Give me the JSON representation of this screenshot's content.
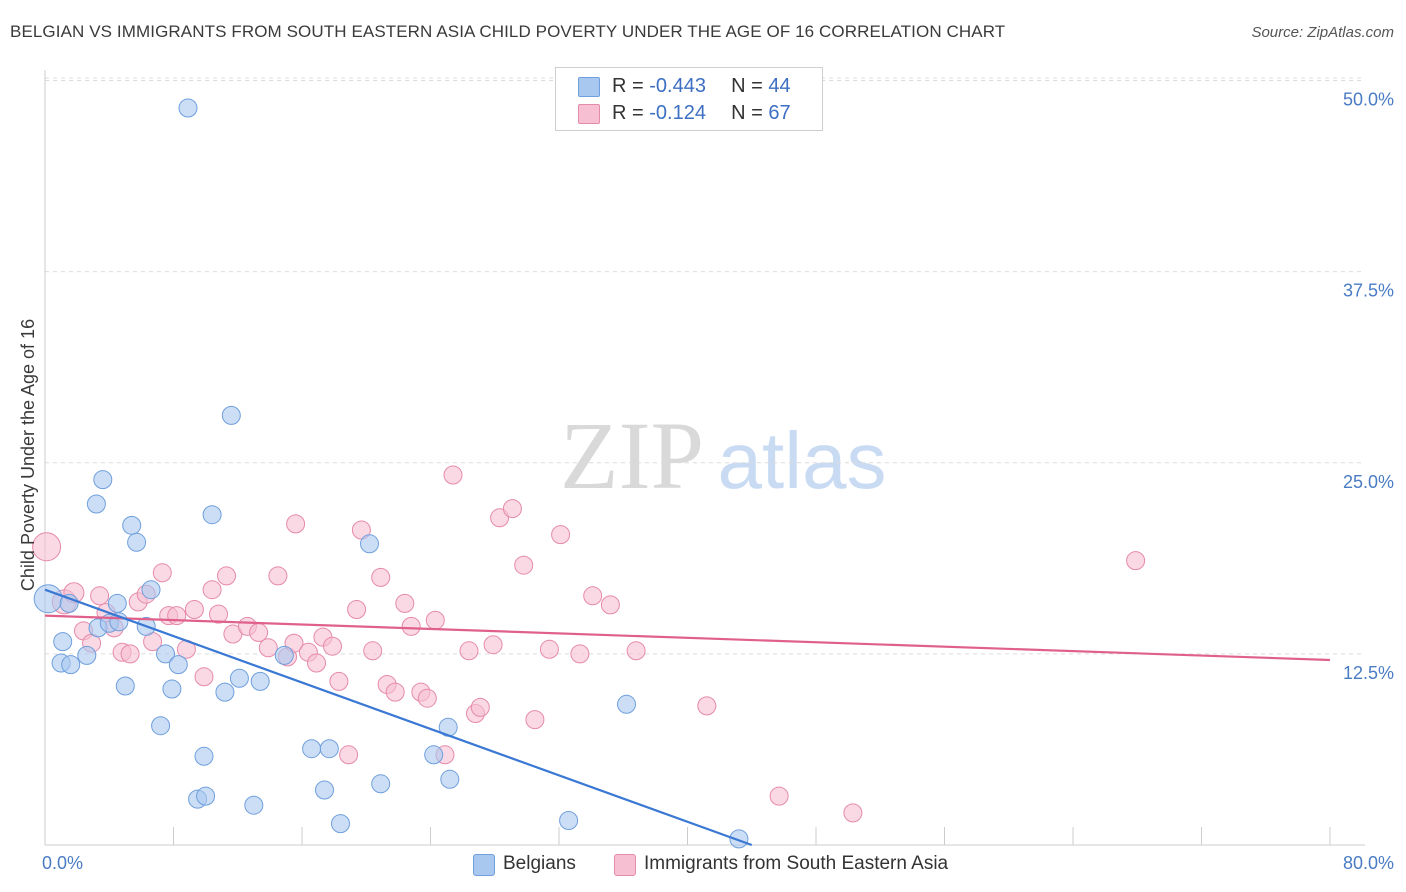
{
  "title": "BELGIAN VS IMMIGRANTS FROM SOUTH EASTERN ASIA CHILD POVERTY UNDER THE AGE OF 16 CORRELATION CHART",
  "source": "Source: ZipAtlas.com",
  "watermark": {
    "zip": "ZIP",
    "atlas": "atlas"
  },
  "colors": {
    "belgians_fill": "#a9c8f0",
    "belgians_stroke": "#6f9fdc",
    "belgians_line": "#3a78d4",
    "sea_fill": "#f6bfd2",
    "sea_stroke": "#e68aab",
    "sea_line": "#e0608c",
    "tick_color": "#4a7cc4",
    "grid_color": "#dcdcdc"
  },
  "legend_top": {
    "rows": [
      {
        "r_label": "R = ",
        "r_value": "-0.443",
        "n_label": "N = ",
        "n_value": "44"
      },
      {
        "r_label": "R = ",
        "r_value": "-0.124",
        "n_label": "N = ",
        "n_value": "67"
      }
    ]
  },
  "legend_bottom": {
    "belgians": "Belgians",
    "sea": "Immigrants from South Eastern Asia"
  },
  "chart_data": {
    "type": "scatter",
    "title": "BELGIAN VS IMMIGRANTS FROM SOUTH EASTERN ASIA CHILD POVERTY UNDER THE AGE OF 16 CORRELATION CHART",
    "xlabel": "",
    "ylabel": "Child Poverty Under the Age of 16",
    "xlim": [
      0,
      80
    ],
    "ylim": [
      0,
      52
    ],
    "x_tick_labels": [
      "0.0%",
      "80.0%"
    ],
    "y_ticks": [
      12.5,
      25.0,
      37.5,
      50.0
    ],
    "y_tick_labels": [
      "12.5%",
      "25.0%",
      "37.5%",
      "50.0%"
    ],
    "series": [
      {
        "name": "Belgians",
        "R": -0.443,
        "N": 44,
        "trend": {
          "x0": 0,
          "y0": 16.7,
          "x1": 44,
          "y1": 0
        },
        "points": [
          [
            0.2,
            16.1,
            14
          ],
          [
            1.0,
            11.9,
            9
          ],
          [
            1.5,
            15.8,
            9
          ],
          [
            1.1,
            13.3,
            9
          ],
          [
            1.6,
            11.8,
            9
          ],
          [
            2.6,
            12.4,
            9
          ],
          [
            3.2,
            22.3,
            9
          ],
          [
            3.3,
            14.2,
            9
          ],
          [
            3.6,
            23.9,
            9
          ],
          [
            4.0,
            14.5,
            9
          ],
          [
            4.6,
            14.6,
            9
          ],
          [
            4.5,
            15.8,
            9
          ],
          [
            5.0,
            10.4,
            9
          ],
          [
            5.4,
            20.9,
            9
          ],
          [
            5.7,
            19.8,
            9
          ],
          [
            6.3,
            14.3,
            9
          ],
          [
            6.6,
            16.7,
            9
          ],
          [
            7.2,
            7.8,
            9
          ],
          [
            7.5,
            12.5,
            9
          ],
          [
            7.9,
            10.2,
            9
          ],
          [
            8.3,
            11.8,
            9
          ],
          [
            8.9,
            48.2,
            9
          ],
          [
            9.5,
            3.0,
            9
          ],
          [
            9.9,
            5.8,
            9
          ],
          [
            10.0,
            3.2,
            9
          ],
          [
            10.4,
            21.6,
            9
          ],
          [
            11.2,
            10.0,
            9
          ],
          [
            11.6,
            28.1,
            9
          ],
          [
            12.1,
            10.9,
            9
          ],
          [
            13.0,
            2.6,
            9
          ],
          [
            13.4,
            10.7,
            9
          ],
          [
            14.9,
            12.4,
            9
          ],
          [
            16.6,
            6.3,
            9
          ],
          [
            17.4,
            3.6,
            9
          ],
          [
            17.7,
            6.3,
            9
          ],
          [
            18.4,
            1.4,
            9
          ],
          [
            20.2,
            19.7,
            9
          ],
          [
            20.9,
            4.0,
            9
          ],
          [
            24.2,
            5.9,
            9
          ],
          [
            25.1,
            7.7,
            9
          ],
          [
            25.2,
            4.3,
            9
          ],
          [
            32.6,
            1.6,
            9
          ],
          [
            36.2,
            9.2,
            9
          ],
          [
            43.2,
            0.4,
            9
          ]
        ]
      },
      {
        "name": "Immigrants from South Eastern Asia",
        "R": -0.124,
        "N": 67,
        "trend": {
          "x0": 0,
          "y0": 15.0,
          "x1": 80,
          "y1": 12.1
        },
        "points": [
          [
            0.1,
            19.5,
            14
          ],
          [
            1.2,
            15.9,
            12
          ],
          [
            1.8,
            16.5,
            10
          ],
          [
            2.4,
            14.0,
            9
          ],
          [
            2.9,
            13.2,
            9
          ],
          [
            3.4,
            16.3,
            9
          ],
          [
            3.8,
            15.2,
            9
          ],
          [
            4.3,
            14.2,
            9
          ],
          [
            4.8,
            12.6,
            9
          ],
          [
            5.3,
            12.5,
            9
          ],
          [
            5.8,
            15.9,
            9
          ],
          [
            6.3,
            16.4,
            9
          ],
          [
            6.7,
            13.3,
            9
          ],
          [
            7.3,
            17.8,
            9
          ],
          [
            7.7,
            15.0,
            9
          ],
          [
            8.2,
            15.0,
            9
          ],
          [
            8.8,
            12.8,
            9
          ],
          [
            9.3,
            15.4,
            9
          ],
          [
            9.9,
            11.0,
            9
          ],
          [
            10.4,
            16.7,
            9
          ],
          [
            10.8,
            15.1,
            9
          ],
          [
            11.3,
            17.6,
            9
          ],
          [
            11.7,
            13.8,
            9
          ],
          [
            12.6,
            14.3,
            9
          ],
          [
            13.3,
            13.9,
            9
          ],
          [
            13.9,
            12.9,
            9
          ],
          [
            14.5,
            17.6,
            9
          ],
          [
            15.1,
            12.3,
            9
          ],
          [
            15.5,
            13.2,
            9
          ],
          [
            15.6,
            21.0,
            9
          ],
          [
            16.4,
            12.6,
            9
          ],
          [
            16.9,
            11.9,
            9
          ],
          [
            17.3,
            13.6,
            9
          ],
          [
            17.9,
            13.0,
            9
          ],
          [
            18.3,
            10.7,
            9
          ],
          [
            18.9,
            5.9,
            9
          ],
          [
            19.4,
            15.4,
            9
          ],
          [
            19.7,
            20.6,
            9
          ],
          [
            20.4,
            12.7,
            9
          ],
          [
            20.9,
            17.5,
            9
          ],
          [
            21.3,
            10.5,
            9
          ],
          [
            21.8,
            10.0,
            9
          ],
          [
            22.4,
            15.8,
            9
          ],
          [
            22.8,
            14.3,
            9
          ],
          [
            23.4,
            10.0,
            9
          ],
          [
            23.8,
            9.6,
            9
          ],
          [
            24.3,
            14.7,
            9
          ],
          [
            24.9,
            5.9,
            9
          ],
          [
            25.4,
            24.2,
            9
          ],
          [
            26.4,
            12.7,
            9
          ],
          [
            26.8,
            8.6,
            9
          ],
          [
            27.1,
            9.0,
            9
          ],
          [
            27.9,
            13.1,
            9
          ],
          [
            28.3,
            21.4,
            9
          ],
          [
            29.1,
            22.0,
            9
          ],
          [
            29.8,
            18.3,
            9
          ],
          [
            30.5,
            8.2,
            9
          ],
          [
            31.4,
            12.8,
            9
          ],
          [
            32.1,
            20.3,
            9
          ],
          [
            33.3,
            12.5,
            9
          ],
          [
            34.1,
            16.3,
            9
          ],
          [
            35.2,
            15.7,
            9
          ],
          [
            36.8,
            12.7,
            9
          ],
          [
            41.2,
            9.1,
            9
          ],
          [
            45.7,
            3.2,
            9
          ],
          [
            50.3,
            2.1,
            9
          ],
          [
            67.9,
            18.6,
            9
          ]
        ]
      }
    ]
  }
}
